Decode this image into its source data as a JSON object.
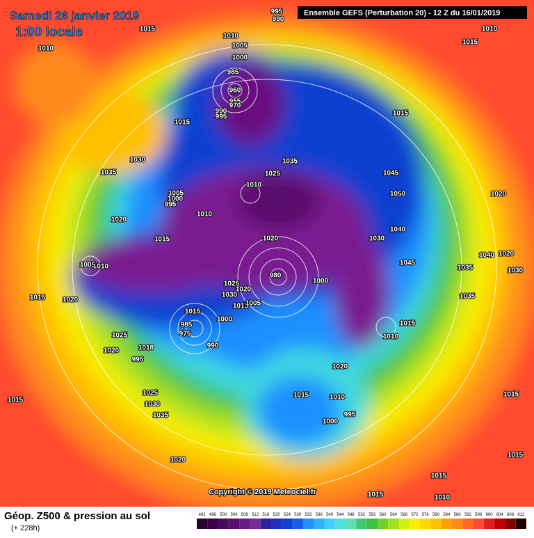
{
  "header": {
    "date": "Samedi 26 janvier 2019",
    "time": "1:00 locale",
    "run": "Ensemble GEFS  (Perturbation 20)  -  12 Z du 16/01/2019"
  },
  "footer": {
    "title": "Géop. Z500 & pression au sol",
    "lead": "(+ 228h)",
    "copyright": "Copyright © 2019 Meteociel.fr"
  },
  "legend": {
    "levels": [
      492,
      496,
      500,
      504,
      508,
      512,
      516,
      520,
      524,
      528,
      532,
      536,
      540,
      544,
      548,
      552,
      556,
      560,
      564,
      568,
      572,
      576,
      580,
      584,
      588,
      592,
      596,
      600,
      604,
      608,
      612
    ]
  },
  "isobar_labels": [
    "995",
    "990",
    "1015",
    "1010",
    "1010",
    "1005",
    "1000",
    "985",
    "960",
    "955",
    "970",
    "990",
    "995",
    "1015",
    "1030",
    "1035",
    "1035",
    "1025",
    "1010",
    "1005",
    "1000",
    "995",
    "1010",
    "1020",
    "1015",
    "1020",
    "1010",
    "1005",
    "1025",
    "1030",
    "1020",
    "1015",
    "1005",
    "980",
    "1000",
    "1015",
    "1000",
    "985",
    "975",
    "990",
    "1025",
    "1018",
    "1020",
    "995",
    "1015",
    "1020",
    "1025",
    "1030",
    "1035",
    "1015",
    "1020",
    "1015",
    "1010",
    "1000",
    "995",
    "1020",
    "1015",
    "1010",
    "1045",
    "1030",
    "1040",
    "1050",
    "1045",
    "1015",
    "1020",
    "1035",
    "1040",
    "1020",
    "1030",
    "1035",
    "1015",
    "1015",
    "1015",
    "1010",
    "1015",
    "1010",
    "1015"
  ]
}
